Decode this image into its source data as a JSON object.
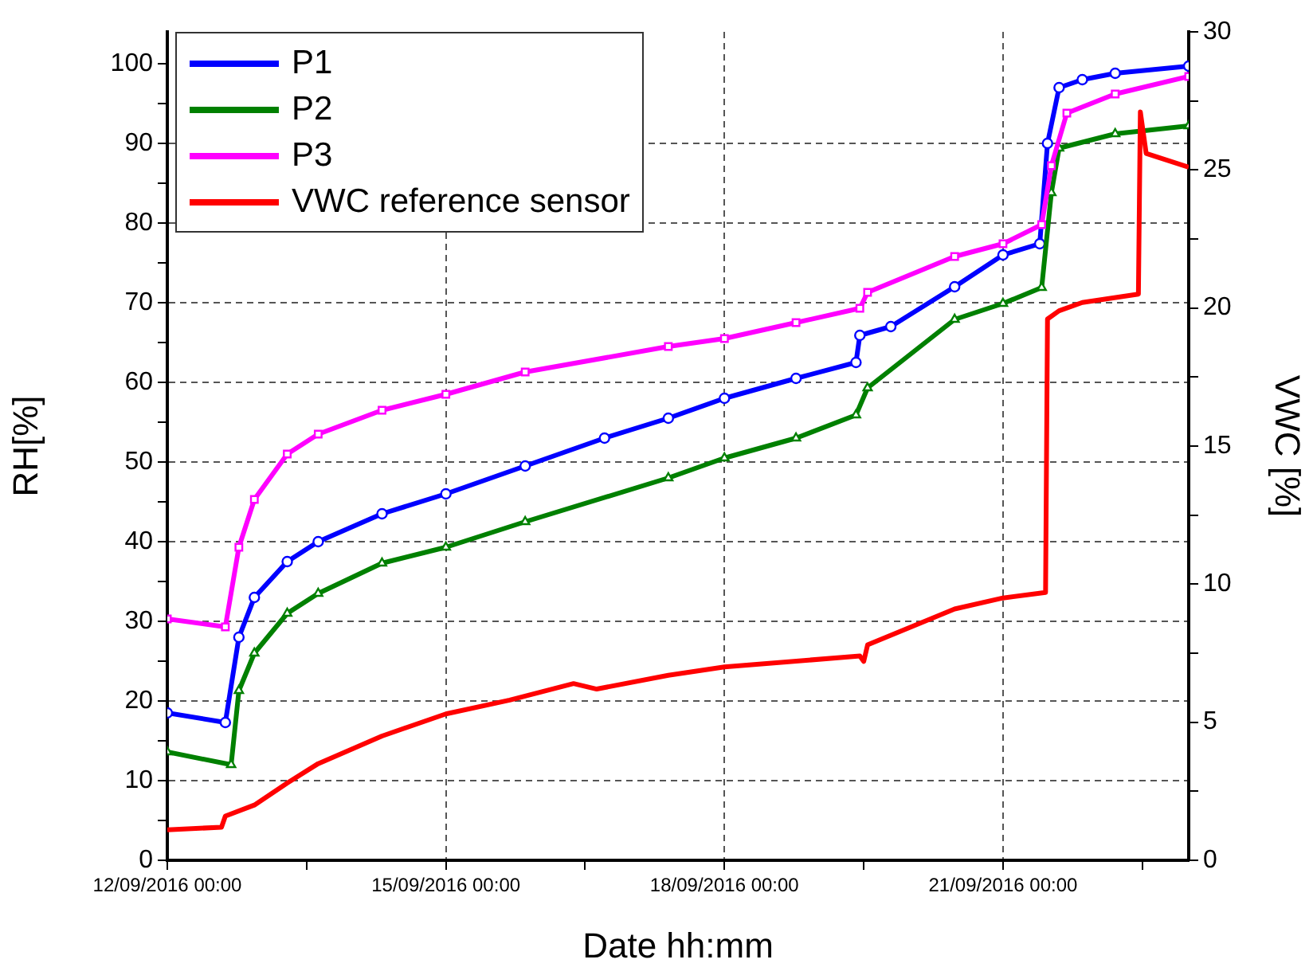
{
  "chart_data": {
    "type": "line",
    "xlabel": "Date hh:mm",
    "ylabel": "RH[%]",
    "y2label": "VWC [%]",
    "grid": true,
    "legend": "top left",
    "xlim": [
      "2016-09-12T00:00",
      "2016-09-23T00:00"
    ],
    "xticks": [
      {
        "value": "2016-09-12T00:00",
        "label": "12/09/2016 00:00"
      },
      {
        "value": "2016-09-13T12:00",
        "label": null
      },
      {
        "value": "2016-09-15T00:00",
        "label": "15/09/2016 00:00"
      },
      {
        "value": "2016-09-16T12:00",
        "label": null
      },
      {
        "value": "2016-09-18T00:00",
        "label": "18/09/2016 00:00"
      },
      {
        "value": "2016-09-19T12:00",
        "label": null
      },
      {
        "value": "2016-09-21T00:00",
        "label": "21/09/2016 00:00"
      },
      {
        "value": "2016-09-22T12:00",
        "label": null
      }
    ],
    "ylim": [
      0,
      104
    ],
    "yticks": [
      0,
      {
        "value": 5,
        "label": null
      },
      10,
      {
        "value": 15,
        "label": null
      },
      20,
      {
        "value": 25,
        "label": null
      },
      30,
      {
        "value": 35,
        "label": null
      },
      40,
      {
        "value": 45,
        "label": null
      },
      50,
      {
        "value": 55,
        "label": null
      },
      60,
      {
        "value": 65,
        "label": null
      },
      70,
      {
        "value": 75,
        "label": null
      },
      80,
      {
        "value": 85,
        "label": null
      },
      90,
      {
        "value": 95,
        "label": null
      },
      100
    ],
    "y2lim": [
      0,
      30
    ],
    "y2ticks": [
      0,
      {
        "value": 2.5,
        "label": null
      },
      5,
      {
        "value": 7.5,
        "label": null
      },
      10,
      {
        "value": 12.5,
        "label": null
      },
      15,
      {
        "value": 17.5,
        "label": null
      },
      20,
      {
        "value": 22.5,
        "label": null
      },
      25,
      {
        "value": 27.5,
        "label": null
      },
      30
    ],
    "series": [
      {
        "name": "P1",
        "color": "#0000ff",
        "marker": "circle",
        "x": [
          "2016-09-12T00:00",
          "2016-09-12T15:00",
          "2016-09-12T18:30",
          "2016-09-12T22:30",
          "2016-09-13T07:00",
          "2016-09-13T15:00",
          "2016-09-14T07:30",
          "2016-09-15T00:00",
          "2016-09-15T20:30",
          "2016-09-16T17:00",
          "2016-09-17T09:30",
          "2016-09-18T00:00",
          "2016-09-18T18:30",
          "2016-09-19T10:00",
          "2016-09-19T11:00",
          "2016-09-19T19:00",
          "2016-09-20T11:30",
          "2016-09-21T00:00",
          "2016-09-21T09:30",
          "2016-09-21T11:30",
          "2016-09-21T14:30",
          "2016-09-21T20:30",
          "2016-09-22T05:00",
          "2016-09-23T00:00"
        ],
        "values": [
          18.5,
          17.3,
          28,
          33,
          37.5,
          40,
          43.5,
          46,
          49.5,
          53,
          55.5,
          58,
          60.5,
          62.5,
          65.9,
          67,
          72,
          76,
          77.4,
          90,
          97,
          98,
          98.8,
          99.7
        ]
      },
      {
        "name": "P2",
        "color": "#008000",
        "marker": "triangle",
        "x": [
          "2016-09-12T00:00",
          "2016-09-12T16:30",
          "2016-09-12T18:30",
          "2016-09-12T22:30",
          "2016-09-13T07:00",
          "2016-09-13T15:00",
          "2016-09-14T07:30",
          "2016-09-15T00:00",
          "2016-09-15T20:30",
          "2016-09-17T09:30",
          "2016-09-18T00:00",
          "2016-09-18T18:30",
          "2016-09-19T10:00",
          "2016-09-19T13:00",
          "2016-09-20T11:30",
          "2016-09-21T00:00",
          "2016-09-21T10:00",
          "2016-09-21T12:30",
          "2016-09-21T14:30",
          "2016-09-22T05:00",
          "2016-09-23T00:00"
        ],
        "values": [
          13.6,
          12,
          21.3,
          26,
          31,
          33.5,
          37.3,
          39.3,
          42.5,
          48,
          50.5,
          53,
          55.9,
          59.3,
          67.9,
          69.9,
          71.9,
          83.8,
          89.4,
          91.2,
          92.2
        ]
      },
      {
        "name": "P3",
        "color": "#ff00ff",
        "marker": "square",
        "x": [
          "2016-09-12T00:00",
          "2016-09-12T15:00",
          "2016-09-12T18:30",
          "2016-09-12T22:30",
          "2016-09-13T07:00",
          "2016-09-13T15:00",
          "2016-09-14T07:30",
          "2016-09-15T00:00",
          "2016-09-15T20:30",
          "2016-09-17T09:30",
          "2016-09-18T00:00",
          "2016-09-18T18:30",
          "2016-09-19T11:00",
          "2016-09-19T13:00",
          "2016-09-20T11:30",
          "2016-09-21T00:00",
          "2016-09-21T10:00",
          "2016-09-21T12:30",
          "2016-09-21T16:30",
          "2016-09-22T05:00",
          "2016-09-23T00:00"
        ],
        "values": [
          30.3,
          29.3,
          39.3,
          45.3,
          51,
          53.5,
          56.5,
          58.5,
          61.3,
          64.5,
          65.5,
          67.5,
          69.3,
          71.3,
          75.8,
          77.4,
          79.8,
          87.2,
          93.8,
          96.2,
          98.4
        ]
      },
      {
        "name": "VWC reference sensor",
        "color": "#ff0000",
        "marker": "none",
        "axis": "y2",
        "x": [
          "2016-09-12T00:00",
          "2016-09-12T14:00",
          "2016-09-12T15:00",
          "2016-09-12T22:30",
          "2016-09-13T07:00",
          "2016-09-13T15:00",
          "2016-09-14T07:30",
          "2016-09-15T00:00",
          "2016-09-15T16:30",
          "2016-09-16T09:00",
          "2016-09-16T15:00",
          "2016-09-17T09:30",
          "2016-09-18T00:00",
          "2016-09-19T11:00",
          "2016-09-19T12:00",
          "2016-09-19T13:00",
          "2016-09-20T11:30",
          "2016-09-21T00:00",
          "2016-09-21T11:00",
          "2016-09-21T11:30",
          "2016-09-21T14:30",
          "2016-09-21T20:30",
          "2016-09-22T11:00",
          "2016-09-22T11:30",
          "2016-09-22T13:00",
          "2016-09-23T00:00"
        ],
        "values": [
          1.1,
          1.2,
          1.6,
          2.0,
          2.8,
          3.5,
          4.5,
          5.3,
          5.8,
          6.4,
          6.2,
          6.7,
          7.0,
          7.4,
          7.2,
          7.8,
          9.1,
          9.5,
          9.7,
          19.6,
          19.9,
          20.2,
          20.5,
          27.1,
          25.6,
          25.1
        ]
      }
    ]
  }
}
